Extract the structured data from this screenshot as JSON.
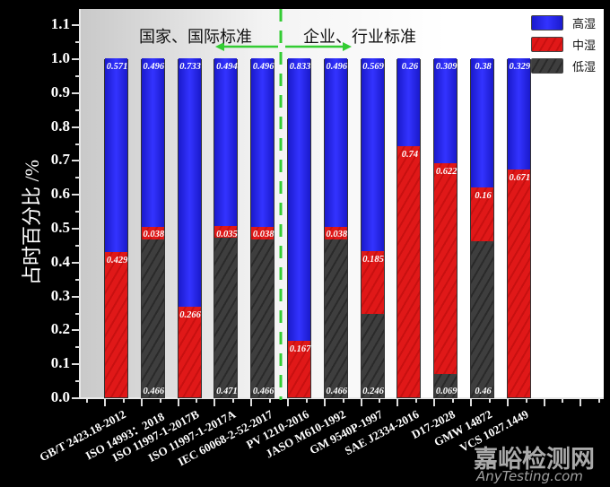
{
  "chart_data": {
    "type": "bar",
    "stacked": true,
    "title": "",
    "xlabel": "",
    "ylabel": "占时百分比 /%",
    "ylim": [
      0.0,
      1.15
    ],
    "yticks": [
      "0.0",
      "0.1",
      "0.2",
      "0.3",
      "0.4",
      "0.5",
      "0.6",
      "0.7",
      "0.8",
      "0.9",
      "1.0",
      "1.1"
    ],
    "categories": [
      "GB/T 2423.18-2012",
      "ISO 14993：2018",
      "ISO 11997-1-2017B",
      "ISO 11997-1-2017A",
      "IEC 60068-2-52-2017",
      "PV 1210-2016",
      "JASO M610-1992",
      "GM 9540P-1997",
      "SAE J2334-2016",
      "D17-2028",
      "GMW 14872",
      "VCS 1027.1449"
    ],
    "series": [
      {
        "name": "低湿",
        "color": "#3a3a3a",
        "values": [
          0,
          0.466,
          0,
          0.471,
          0.466,
          0,
          0.466,
          0.246,
          0,
          0.069,
          0.46,
          0
        ]
      },
      {
        "name": "中湿",
        "color": "#e01818",
        "values": [
          0.429,
          0.038,
          0.266,
          0.035,
          0.038,
          0.167,
          0.038,
          0.185,
          0.74,
          0.622,
          0.16,
          0.671
        ]
      },
      {
        "name": "高湿",
        "color": "#2222ee",
        "values": [
          0.571,
          0.496,
          0.733,
          0.494,
          0.496,
          0.833,
          0.496,
          0.569,
          0.26,
          0.309,
          0.38,
          0.329
        ]
      }
    ],
    "low_labels": [
      "",
      "0.466",
      "",
      "0.471",
      "0.466",
      "",
      "0.466",
      "0.246",
      "",
      "0.069",
      "0.46",
      ""
    ],
    "mid_labels": [
      "0.429",
      "0.038",
      "0.266",
      "0.035",
      "0.038",
      "0.167",
      "0.038",
      "0.185",
      "0.74",
      "0.622",
      "0.16",
      "0.671"
    ],
    "high_labels": [
      "0.571",
      "0.496",
      "0.733",
      "0.494",
      "0.496",
      "0.833",
      "0.496",
      "0.569",
      "0.26",
      "0.309",
      "0.38",
      "0.329"
    ],
    "annotations": {
      "left_group": "国家、国际标准",
      "right_group": "企业、行业标准",
      "divider_color": "#33cc33"
    },
    "legend": {
      "position": "top-right",
      "entries": [
        "高湿",
        "中湿",
        "低湿"
      ]
    },
    "grid": false
  },
  "watermark": {
    "cn": "嘉峪检测网",
    "en": "AnyTesting.com"
  }
}
